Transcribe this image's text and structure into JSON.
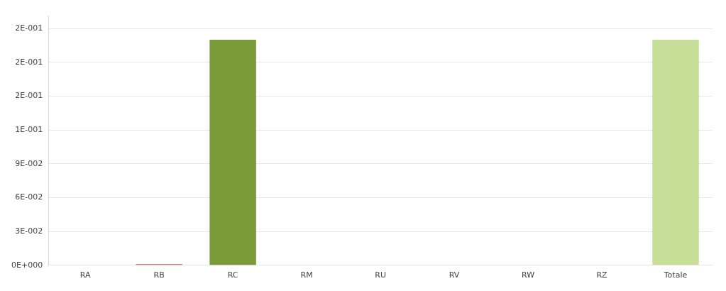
{
  "chart_data": {
    "type": "bar",
    "categories": [
      "RA",
      "RB",
      "RC",
      "RM",
      "RU",
      "RV",
      "RW",
      "RZ",
      "Totale"
    ],
    "values": [
      0,
      0.001,
      0.2,
      0,
      0,
      0,
      0,
      0,
      0.2
    ],
    "colors": [
      "#c0504d",
      "#c0504d",
      "#7b9b3a",
      "#c0504d",
      "#c0504d",
      "#c0504d",
      "#c0504d",
      "#c0504d",
      "#c6de98"
    ],
    "ylim": [
      0,
      0.221
    ],
    "yticks": [
      {
        "value": 0,
        "label": "0E+000"
      },
      {
        "value": 0.03,
        "label": "3E-002"
      },
      {
        "value": 0.06,
        "label": "6E-002"
      },
      {
        "value": 0.09,
        "label": "9E-002"
      },
      {
        "value": 0.12,
        "label": "1E-001"
      },
      {
        "value": 0.15,
        "label": "2E-001"
      },
      {
        "value": 0.18,
        "label": "2E-001"
      },
      {
        "value": 0.21,
        "label": "2E-001"
      }
    ],
    "grid": "y",
    "legend": false
  }
}
